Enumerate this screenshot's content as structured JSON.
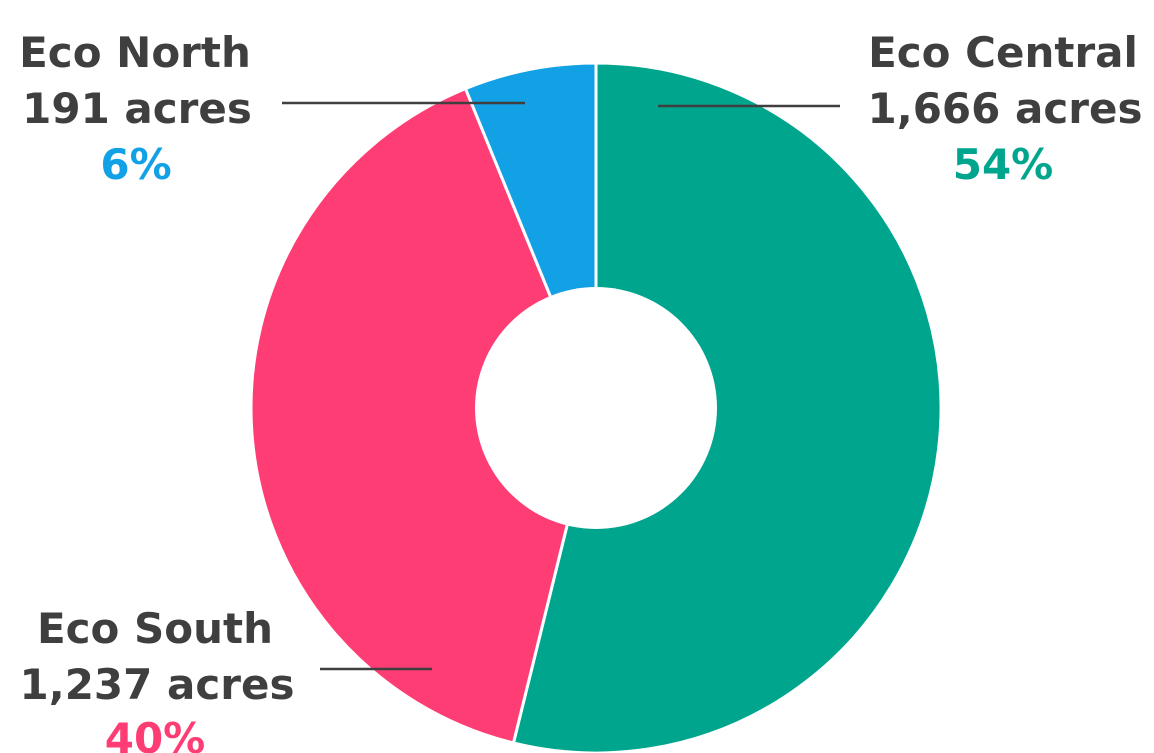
{
  "chart_data": {
    "type": "pie",
    "variant": "donut",
    "categories": [
      "Eco Central",
      "Eco South",
      "Eco North"
    ],
    "values": [
      1666,
      1237,
      191
    ],
    "value_labels": [
      "1,666 acres",
      "1,237 acres",
      "191 acres"
    ],
    "percent_labels": [
      "54%",
      "40%",
      "6%"
    ],
    "colors": [
      "#00a58d",
      "#ff3d75",
      "#13a1e6"
    ],
    "start_angle_deg": 0,
    "direction": "clockwise",
    "legend": "none"
  }
}
